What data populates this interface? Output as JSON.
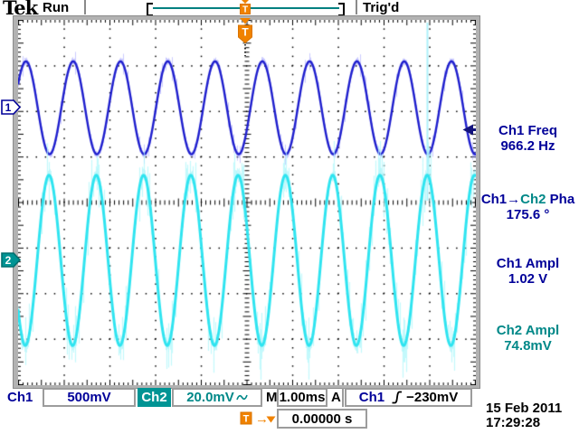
{
  "header": {
    "logo": "Tek",
    "acquisition_status": "Run",
    "trigger_status": "Trig'd"
  },
  "markers": {
    "ch1": "1",
    "ch2": "2",
    "trigger_flag": "T"
  },
  "measurements": {
    "freq": {
      "label": "Ch1 Freq",
      "value": "966.2 Hz"
    },
    "phase": {
      "label_ch1": "Ch1",
      "arrow": "→",
      "label_ch2": "Ch2",
      "label_suffix": " Pha",
      "value": "175.6 °"
    },
    "ch1_ampl": {
      "label": "Ch1 Ampl",
      "value": "1.02 V"
    },
    "ch2_ampl": {
      "label": "Ch2 Ampl",
      "value": "74.8mV"
    }
  },
  "status_bar": {
    "ch1_label": "Ch1",
    "ch1_scale": "500mV",
    "ch2_label": "Ch2",
    "ch2_scale": "20.0mV",
    "horizontal_label": "M",
    "horizontal_scale": "1.00ms",
    "trigger_label": "A",
    "trigger_source": "Ch1",
    "trigger_level": "−230mV"
  },
  "footer": {
    "arrow": "→",
    "trigger_position": "0.00000 s",
    "date": "15 Feb  2011",
    "time": "17:29:28"
  },
  "colors": {
    "ch1_trace": "#1e1ecd",
    "ch1_halo": "rgba(140,140,255,0.45)",
    "ch2_trace": "#2fe4f0",
    "ch2_band": "rgba(150,240,248,0.5)",
    "ch2_spike": "rgba(175,247,251,0.75)",
    "navy_text": "#000099",
    "teal_text": "#008888",
    "teal_fill": "#009494",
    "orange": "#f08200",
    "record_bar": "#008080"
  },
  "chart_data": {
    "type": "line",
    "title": "Oscilloscope display: Ch1 and Ch2 sine traces",
    "divisions": {
      "x": 10,
      "y": 8
    },
    "time_per_div_ms": 1.0,
    "trigger": {
      "source": "Ch1",
      "slope": "rising",
      "level_mV": -230,
      "position_s": 0.0
    },
    "series": [
      {
        "name": "Ch1",
        "volts_per_div": 0.5,
        "amplitude_pp_v": 1.02,
        "frequency_hz": 966.2,
        "center_div_above_middle": 2.08,
        "phase_deg": 0,
        "noise": "low"
      },
      {
        "name": "Ch2",
        "volts_per_div": 0.02,
        "amplitude_pp_v": 0.0748,
        "frequency_hz": 966.2,
        "center_div_above_middle": -1.27,
        "phase_deg": 175.6,
        "noise": "high"
      }
    ],
    "glitch_line_x_div_from_left": 8.95
  }
}
